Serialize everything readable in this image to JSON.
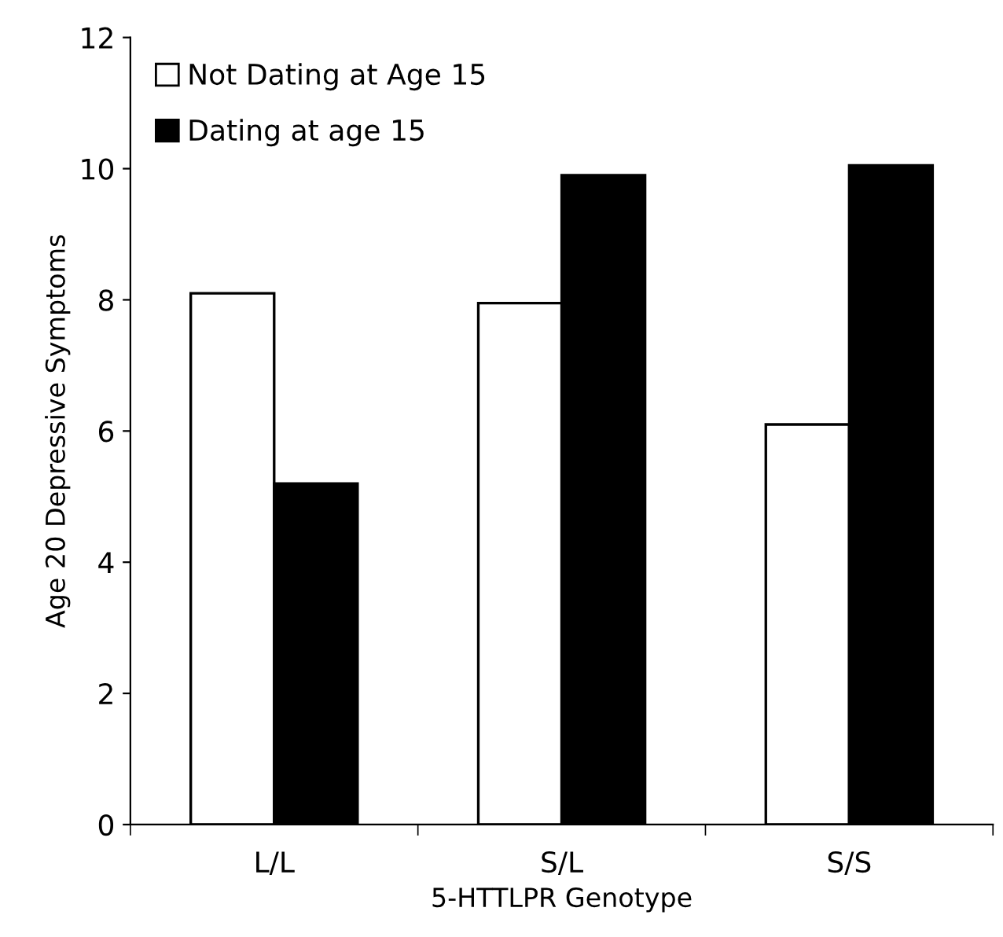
{
  "chart_data": {
    "type": "bar",
    "xlabel": "5-HTTLPR Genotype",
    "ylabel": "Age 20 Depressive Symptoms",
    "categories": [
      "L/L",
      "S/L",
      "S/S"
    ],
    "series": [
      {
        "name": "Not Dating at Age 15",
        "color": "#ffffff",
        "values": [
          8.1,
          7.95,
          6.1
        ]
      },
      {
        "name": "Dating at age 15",
        "color": "#000000",
        "values": [
          5.2,
          9.9,
          10.05
        ]
      }
    ],
    "ylim": [
      0,
      12
    ],
    "yticks": [
      0,
      2,
      4,
      6,
      8,
      10,
      12
    ],
    "grid": false,
    "legend": "top left"
  }
}
